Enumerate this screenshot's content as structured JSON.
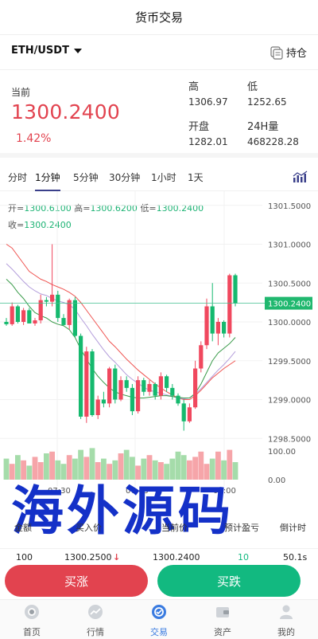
{
  "header": {
    "title": "货币交易"
  },
  "pair": {
    "symbol": "ETH/USDT",
    "holdings_label": "持仓"
  },
  "stats": {
    "current_label": "当前",
    "current_price": "1300.2400",
    "change": "1.42%",
    "high_label": "高",
    "high": "1306.97",
    "low_label": "低",
    "low": "1252.65",
    "open_label": "开盘",
    "open": "1282.01",
    "vol_label": "24H量",
    "vol": "468228.28"
  },
  "periods": [
    "分时",
    "1分钟",
    "5分钟",
    "30分钟",
    "1小时",
    "1天"
  ],
  "active_period": "1分钟",
  "ohlc": {
    "open_label": "开=",
    "open": "1300.6100",
    "high_label": "高=",
    "high": "1300.6200",
    "low_label": "低=",
    "low": "1300.2400",
    "close_label": "收=",
    "close": "1300.2400"
  },
  "chart_data": {
    "type": "candlestick",
    "y_ticks": [
      "1301.5000",
      "1301.0000",
      "1300.5000",
      "1300.0000",
      "1299.5000",
      "1299.0000",
      "1298.5000"
    ],
    "ylim": [
      1298.4,
      1301.6
    ],
    "current_price_label": "1300.2400",
    "current_price": 1300.24,
    "x_ticks": [
      "07:30",
      "07:45",
      "08:00"
    ],
    "volume_ticks": [
      "100.00",
      "0.00"
    ],
    "candles": [
      [
        1300.0,
        1300.05,
        1299.95,
        1299.97
      ],
      [
        1299.97,
        1300.25,
        1299.95,
        1300.2
      ],
      [
        1300.2,
        1300.22,
        1299.98,
        1300.0
      ],
      [
        1300.0,
        1300.18,
        1299.96,
        1300.15
      ],
      [
        1300.15,
        1300.18,
        1299.98,
        1299.98
      ],
      [
        1299.98,
        1300.05,
        1299.95,
        1300.02
      ],
      [
        1300.02,
        1300.35,
        1299.98,
        1300.28
      ],
      [
        1300.28,
        1300.32,
        1300.2,
        1300.26
      ],
      [
        1300.26,
        1301.0,
        1300.2,
        1300.35
      ],
      [
        1300.35,
        1300.4,
        1300.0,
        1300.05
      ],
      [
        1300.05,
        1300.1,
        1299.95,
        1299.96
      ],
      [
        1299.96,
        1300.3,
        1299.9,
        1300.28
      ],
      [
        1300.28,
        1300.32,
        1299.8,
        1299.82
      ],
      [
        1299.82,
        1299.85,
        1298.75,
        1298.78
      ],
      [
        1298.78,
        1299.68,
        1298.7,
        1299.62
      ],
      [
        1299.62,
        1299.65,
        1298.78,
        1298.8
      ],
      [
        1298.8,
        1299.05,
        1298.75,
        1299.0
      ],
      [
        1299.0,
        1299.1,
        1298.9,
        1298.95
      ],
      [
        1298.95,
        1299.42,
        1298.9,
        1299.4
      ],
      [
        1299.4,
        1299.45,
        1298.95,
        1299.0
      ],
      [
        1299.0,
        1299.3,
        1298.98,
        1299.25
      ],
      [
        1299.25,
        1299.3,
        1299.1,
        1299.15
      ],
      [
        1299.15,
        1299.2,
        1298.8,
        1298.85
      ],
      [
        1298.85,
        1299.3,
        1298.82,
        1299.25
      ],
      [
        1299.25,
        1299.28,
        1299.05,
        1299.1
      ],
      [
        1299.1,
        1299.25,
        1299.05,
        1299.2
      ],
      [
        1299.2,
        1299.22,
        1299.0,
        1299.05
      ],
      [
        1299.05,
        1299.35,
        1299.0,
        1299.3
      ],
      [
        1299.3,
        1299.32,
        1299.1,
        1299.15
      ],
      [
        1299.15,
        1299.2,
        1299.0,
        1299.05
      ],
      [
        1299.05,
        1299.08,
        1298.92,
        1298.95
      ],
      [
        1298.95,
        1299.0,
        1298.6,
        1298.72
      ],
      [
        1298.72,
        1298.95,
        1298.7,
        1298.9
      ],
      [
        1298.9,
        1299.5,
        1298.88,
        1299.4
      ],
      [
        1299.4,
        1299.75,
        1299.35,
        1299.7
      ],
      [
        1299.7,
        1300.3,
        1299.65,
        1300.2
      ],
      [
        1300.2,
        1300.5,
        1299.75,
        1299.85
      ],
      [
        1299.85,
        1300.05,
        1299.7,
        1300.0
      ],
      [
        1300.0,
        1300.02,
        1299.8,
        1299.85
      ],
      [
        1299.85,
        1300.62,
        1299.8,
        1300.6
      ],
      [
        1300.6,
        1300.62,
        1300.2,
        1300.24
      ]
    ],
    "volumes": [
      60,
      45,
      70,
      55,
      40,
      65,
      50,
      75,
      80,
      55,
      45,
      70,
      60,
      85,
      65,
      90,
      50,
      60,
      45,
      55,
      75,
      85,
      65,
      40,
      60,
      70,
      55,
      50,
      45,
      60,
      80,
      70,
      55,
      65,
      80,
      45,
      60,
      80,
      55,
      85,
      50
    ],
    "ma_series": [
      {
        "color": "#ef5350",
        "values": [
          1301.0,
          1300.95,
          1300.85,
          1300.75,
          1300.65,
          1300.6,
          1300.55,
          1300.52,
          1300.48,
          1300.45,
          1300.42,
          1300.38,
          1300.33,
          1300.25,
          1300.15,
          1300.05,
          1299.95,
          1299.85,
          1299.75,
          1299.68,
          1299.6,
          1299.52,
          1299.45,
          1299.38,
          1299.32,
          1299.26,
          1299.2,
          1299.15,
          1299.1,
          1299.06,
          1299.02,
          1299.0,
          1299.0,
          1299.05,
          1299.12,
          1299.2,
          1299.28,
          1299.34,
          1299.4,
          1299.45,
          1299.5
        ]
      },
      {
        "color": "#b39ddb",
        "values": [
          1300.75,
          1300.68,
          1300.6,
          1300.52,
          1300.45,
          1300.4,
          1300.36,
          1300.34,
          1300.3,
          1300.27,
          1300.25,
          1300.22,
          1300.16,
          1300.05,
          1299.95,
          1299.84,
          1299.74,
          1299.64,
          1299.55,
          1299.48,
          1299.4,
          1299.32,
          1299.26,
          1299.21,
          1299.16,
          1299.12,
          1299.1,
          1299.08,
          1299.06,
          1299.04,
          1299.02,
          1299.01,
          1299.02,
          1299.07,
          1299.14,
          1299.22,
          1299.3,
          1299.38,
          1299.45,
          1299.53,
          1299.62
        ]
      },
      {
        "color": "#3a9b4a",
        "values": [
          1300.55,
          1300.48,
          1300.38,
          1300.3,
          1300.2,
          1300.12,
          1300.08,
          1300.05,
          1300.0,
          1299.97,
          1299.95,
          1299.9,
          1299.8,
          1299.65,
          1299.52,
          1299.4,
          1299.3,
          1299.22,
          1299.15,
          1299.1,
          1299.07,
          1299.05,
          1299.03,
          1299.02,
          1299.02,
          1299.03,
          1299.04,
          1299.05,
          1299.05,
          1299.04,
          1299.03,
          1299.02,
          1299.02,
          1299.08,
          1299.2,
          1299.35,
          1299.5,
          1299.6,
          1299.66,
          1299.72,
          1299.8
        ]
      }
    ],
    "colors": {
      "up": "#f0485e",
      "down": "#15b96e",
      "price_line": "#3fbf8f"
    }
  },
  "watermark": "海外源码",
  "info": {
    "headers": [
      "金额",
      "买入价",
      "当前价",
      "预计盈亏",
      "倒计时"
    ],
    "row": {
      "amount": "100",
      "buy_price": "1300.2500",
      "arrow": "↓",
      "current_price": "1300.2400",
      "pnl": "10",
      "countdown": "50.1s"
    }
  },
  "actions": {
    "buy_up": "买涨",
    "buy_down": "买跌"
  },
  "tabbar": {
    "items": [
      {
        "label": "首页",
        "icon": "home-icon"
      },
      {
        "label": "行情",
        "icon": "market-icon"
      },
      {
        "label": "交易",
        "icon": "trade-icon"
      },
      {
        "label": "资产",
        "icon": "wallet-icon"
      },
      {
        "label": "我的",
        "icon": "user-icon"
      }
    ],
    "active": "交易"
  },
  "theme": {
    "red": "#e2434f",
    "green": "#12b980",
    "blue": "#3a7be0"
  }
}
